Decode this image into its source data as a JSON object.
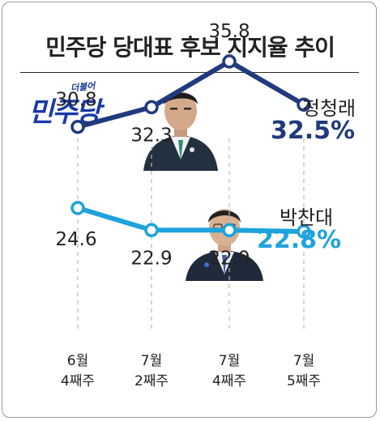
{
  "title": "민주당 당대표 후보 지지율 추이",
  "logo": {
    "small": "더불어",
    "main": "민주당"
  },
  "chart_data": {
    "type": "line",
    "categories": [
      [
        "6월",
        "4째주"
      ],
      [
        "7월",
        "2째주"
      ],
      [
        "7월",
        "4째주"
      ],
      [
        "7월",
        "5째주"
      ]
    ],
    "ylim": [
      15,
      40
    ],
    "grid": false,
    "series": [
      {
        "name": "정청래",
        "latest_label": "32.5%",
        "color": "#213a7e",
        "values": [
          30.8,
          32.3,
          35.8,
          32.5
        ],
        "labels": [
          "30.8",
          "32.3",
          "35.8",
          null
        ]
      },
      {
        "name": "박찬대",
        "latest_label": "22.8%",
        "color": "#1ea3dc",
        "values": [
          24.6,
          22.9,
          22.9,
          22.8
        ],
        "labels": [
          "24.6",
          "22.9",
          "22.9",
          null
        ]
      }
    ]
  }
}
